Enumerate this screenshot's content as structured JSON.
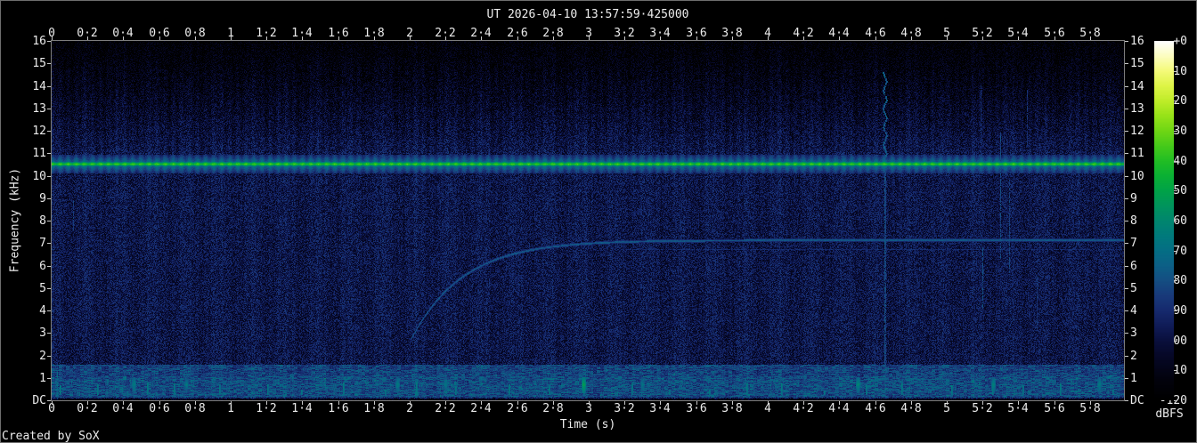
{
  "window": {
    "credit": "Created by SoX"
  },
  "chart_data": {
    "type": "heatmap",
    "subtype": "audio-spectrogram",
    "title": "UT 2026-04-10 13:57:59·425000",
    "xlabel": "Time (s)",
    "ylabel": "Frequency (kHz)",
    "colorbar_label": "dBFS",
    "x_range_s": [
      0,
      5.99
    ],
    "y_range_khz": [
      0,
      16
    ],
    "db_range": [
      -120,
      0
    ],
    "grid": false,
    "x_ticks": [
      {
        "v": 0,
        "label": "0"
      },
      {
        "v": 0.2,
        "label": "0·2"
      },
      {
        "v": 0.4,
        "label": "0·4"
      },
      {
        "v": 0.6,
        "label": "0·6"
      },
      {
        "v": 0.8,
        "label": "0·8"
      },
      {
        "v": 1,
        "label": "1"
      },
      {
        "v": 1.2,
        "label": "1·2"
      },
      {
        "v": 1.4,
        "label": "1·4"
      },
      {
        "v": 1.6,
        "label": "1·6"
      },
      {
        "v": 1.8,
        "label": "1·8"
      },
      {
        "v": 2,
        "label": "2"
      },
      {
        "v": 2.2,
        "label": "2·2"
      },
      {
        "v": 2.4,
        "label": "2·4"
      },
      {
        "v": 2.6,
        "label": "2·6"
      },
      {
        "v": 2.8,
        "label": "2·8"
      },
      {
        "v": 3,
        "label": "3"
      },
      {
        "v": 3.2,
        "label": "3·2"
      },
      {
        "v": 3.4,
        "label": "3·4"
      },
      {
        "v": 3.6,
        "label": "3·6"
      },
      {
        "v": 3.8,
        "label": "3·8"
      },
      {
        "v": 4,
        "label": "4"
      },
      {
        "v": 4.2,
        "label": "4·2"
      },
      {
        "v": 4.4,
        "label": "4·4"
      },
      {
        "v": 4.6,
        "label": "4·6"
      },
      {
        "v": 4.8,
        "label": "4·8"
      },
      {
        "v": 5,
        "label": "5"
      },
      {
        "v": 5.2,
        "label": "5·2"
      },
      {
        "v": 5.4,
        "label": "5·4"
      },
      {
        "v": 5.6,
        "label": "5·6"
      },
      {
        "v": 5.8,
        "label": "5·8"
      }
    ],
    "y_ticks": [
      {
        "v": 16,
        "label": "16"
      },
      {
        "v": 15,
        "label": "15"
      },
      {
        "v": 14,
        "label": "14"
      },
      {
        "v": 13,
        "label": "13"
      },
      {
        "v": 12,
        "label": "12"
      },
      {
        "v": 11,
        "label": "11"
      },
      {
        "v": 10,
        "label": "10"
      },
      {
        "v": 9,
        "label": "9"
      },
      {
        "v": 8,
        "label": "8"
      },
      {
        "v": 7,
        "label": "7"
      },
      {
        "v": 6,
        "label": "6"
      },
      {
        "v": 5,
        "label": "5"
      },
      {
        "v": 4,
        "label": "4"
      },
      {
        "v": 3,
        "label": "3"
      },
      {
        "v": 2,
        "label": "2"
      },
      {
        "v": 1,
        "label": "1"
      },
      {
        "v": 0,
        "label": "DC"
      }
    ],
    "db_ticks": [
      {
        "v": 0,
        "label": "+0"
      },
      {
        "v": -10,
        "label": "-10"
      },
      {
        "v": -20,
        "label": "-20"
      },
      {
        "v": -30,
        "label": "-30"
      },
      {
        "v": -40,
        "label": "-40"
      },
      {
        "v": -50,
        "label": "-50"
      },
      {
        "v": -60,
        "label": "-60"
      },
      {
        "v": -70,
        "label": "-70"
      },
      {
        "v": -80,
        "label": "-80"
      },
      {
        "v": -90,
        "label": "-90"
      },
      {
        "v": -100,
        "label": "-100"
      },
      {
        "v": -110,
        "label": "-110"
      },
      {
        "v": -120,
        "label": "-120"
      }
    ],
    "palette_sox_stops": [
      [
        0.0,
        0,
        0,
        0
      ],
      [
        0.055,
        2,
        2,
        12
      ],
      [
        0.125,
        6,
        8,
        40
      ],
      [
        0.167,
        10,
        16,
        62
      ],
      [
        0.208,
        16,
        28,
        88
      ],
      [
        0.25,
        22,
        42,
        110
      ],
      [
        0.292,
        24,
        58,
        122
      ],
      [
        0.333,
        20,
        78,
        130
      ],
      [
        0.375,
        12,
        96,
        134
      ],
      [
        0.417,
        4,
        110,
        132
      ],
      [
        0.458,
        0,
        122,
        124
      ],
      [
        0.5,
        0,
        134,
        110
      ],
      [
        0.542,
        0,
        148,
        92
      ],
      [
        0.583,
        0,
        162,
        72
      ],
      [
        0.625,
        10,
        176,
        52
      ],
      [
        0.667,
        34,
        190,
        36
      ],
      [
        0.708,
        70,
        202,
        26
      ],
      [
        0.75,
        110,
        214,
        20
      ],
      [
        0.792,
        150,
        226,
        24
      ],
      [
        0.833,
        190,
        236,
        40
      ],
      [
        0.875,
        222,
        244,
        70
      ],
      [
        0.917,
        244,
        250,
        120
      ],
      [
        0.958,
        252,
        253,
        190
      ],
      [
        1.0,
        255,
        255,
        255
      ]
    ],
    "features": {
      "noise_floor_db": -98,
      "carrier_tone": {
        "freq_khz": 10.51,
        "level_db": -36,
        "modulation": "pulsed",
        "pulse_period_s": 0.045
      },
      "carrier_halo_band_khz": [
        10.15,
        10.9
      ],
      "high_freq_rolloff": {
        "start_khz": 10.9,
        "db_per_khz": -4.2
      },
      "low_band": {
        "f1_khz": 0.0,
        "f2_khz": 1.6,
        "level_db": -84
      },
      "chirp": {
        "start_s": 2.01,
        "start_khz": 2.77,
        "plateau_khz": 7.12,
        "time_constant_s": 0.289,
        "level_db": -79
      },
      "plateau_echo": {
        "freq_khz": 6.72,
        "start_s": 3.18,
        "level_db": -90
      },
      "pulses": [
        {
          "t": 4.65,
          "f1": 0.2,
          "f2": 14.6,
          "db": -80,
          "wiggle": true,
          "w": 2
        },
        {
          "t": 5.2,
          "f1": 4.1,
          "f2": 6.8,
          "db": -80,
          "w": 1
        },
        {
          "t": 5.3,
          "f1": 6.3,
          "f2": 11.9,
          "db": -82,
          "w": 1
        },
        {
          "t": 5.35,
          "f1": 5.7,
          "f2": 9.8,
          "db": -84,
          "w": 1
        },
        {
          "t": 5.5,
          "f1": 3.2,
          "f2": 5.5,
          "db": -86,
          "w": 1
        },
        {
          "t": 5.19,
          "f1": 11.5,
          "f2": 14.0,
          "db": -88,
          "w": 1
        },
        {
          "t": 5.45,
          "f1": 11.3,
          "f2": 13.8,
          "db": -88,
          "w": 1
        },
        {
          "t": 0.12,
          "f1": 7.6,
          "f2": 8.9,
          "db": -85,
          "w": 1
        },
        {
          "t": 0.03,
          "f1": 0.1,
          "f2": 1.3,
          "db": -74,
          "w": 1
        }
      ],
      "dc_blobs": [
        {
          "t": 0.46,
          "db": -64
        },
        {
          "t": 0.75,
          "db": -67
        },
        {
          "t": 1.93,
          "db": -65
        },
        {
          "t": 2.2,
          "db": -67
        },
        {
          "t": 2.97,
          "db": -53
        },
        {
          "t": 3.3,
          "db": -68
        },
        {
          "t": 4.5,
          "db": -61
        },
        {
          "t": 5.26,
          "db": -63
        },
        {
          "t": 5.85,
          "db": -65
        }
      ]
    }
  }
}
